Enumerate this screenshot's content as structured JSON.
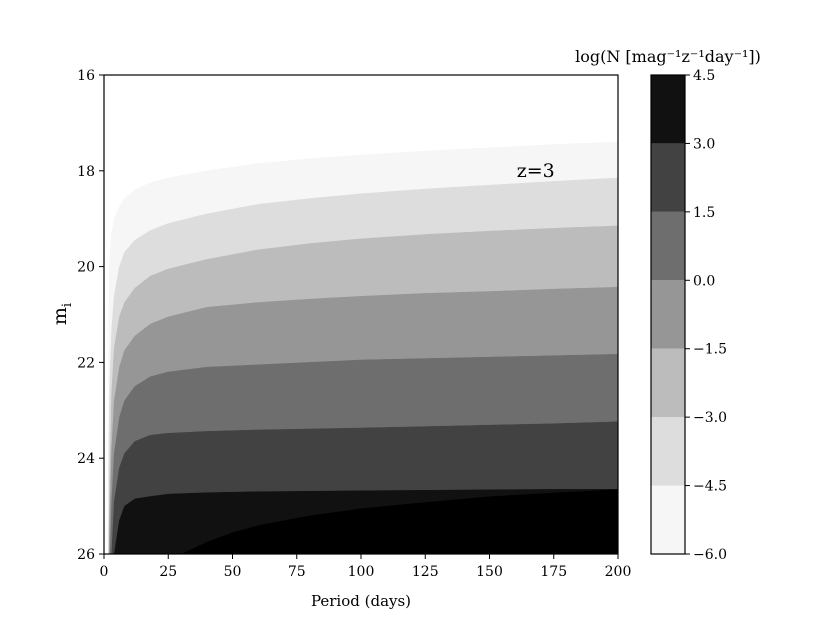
{
  "chart_data": {
    "type": "contourf",
    "xlabel": "Period (days)",
    "ylabel_base": "m",
    "ylabel_sub": "i",
    "xlim": [
      0,
      200
    ],
    "ylim": [
      26,
      16
    ],
    "y_inverted": true,
    "xticks": [
      0,
      25,
      50,
      75,
      100,
      125,
      150,
      175,
      200
    ],
    "yticks": [
      16,
      18,
      20,
      22,
      24,
      26
    ],
    "annotation": {
      "text": "z=3",
      "x": 168,
      "y": 18.0
    },
    "colorbar": {
      "title": "log(N [mag⁻¹z⁻¹day⁻¹])",
      "tick_labels": [
        "4.5",
        "3.0",
        "1.5",
        "0.0",
        "−1.5",
        "−3.0",
        "−4.5",
        "−6.0"
      ],
      "levels": [
        -6.0,
        -4.5,
        -3.0,
        -1.5,
        0.0,
        1.5,
        3.0,
        4.5
      ],
      "band_colors": [
        "#f6f6f6",
        "#dddddd",
        "#bcbcbc",
        "#969696",
        "#6e6e6e",
        "#424242",
        "#111111"
      ]
    },
    "region_colors": [
      "#ffffff",
      "#f6f6f6",
      "#dddddd",
      "#bcbcbc",
      "#969696",
      "#6e6e6e",
      "#424242",
      "#111111"
    ],
    "boundaries": [
      {
        "level": -6.0,
        "p": [
          1.8,
          2.2,
          3,
          4,
          6,
          8,
          12,
          18,
          25,
          40,
          60,
          80,
          100,
          125,
          150,
          175,
          200
        ],
        "m": [
          21.0,
          19.9,
          19.3,
          19.0,
          18.75,
          18.58,
          18.4,
          18.25,
          18.15,
          18.0,
          17.85,
          17.75,
          17.67,
          17.59,
          17.52,
          17.45,
          17.4
        ]
      },
      {
        "level": -4.5,
        "p": [
          1.8,
          2.2,
          3,
          4,
          6,
          8,
          12,
          18,
          25,
          40,
          60,
          80,
          100,
          125,
          150,
          175,
          200
        ],
        "m": [
          24.0,
          22.5,
          21.3,
          20.6,
          20.0,
          19.7,
          19.45,
          19.25,
          19.1,
          18.9,
          18.7,
          18.58,
          18.48,
          18.38,
          18.3,
          18.22,
          18.15
        ]
      },
      {
        "level": -3.0,
        "p": [
          1.8,
          2.2,
          3,
          4,
          6,
          8,
          12,
          18,
          25,
          40,
          60,
          80,
          100,
          125,
          150,
          175,
          200
        ],
        "m": [
          26.0,
          24.5,
          22.6,
          21.7,
          21.05,
          20.75,
          20.45,
          20.2,
          20.05,
          19.85,
          19.65,
          19.52,
          19.42,
          19.33,
          19.26,
          19.2,
          19.15
        ]
      },
      {
        "level": -1.5,
        "p": [
          2,
          2.4,
          3,
          4,
          6,
          8,
          12,
          18,
          25,
          40,
          60,
          80,
          100,
          125,
          150,
          175,
          200
        ],
        "m": [
          26.0,
          25.0,
          23.8,
          22.8,
          22.1,
          21.75,
          21.45,
          21.2,
          21.05,
          20.85,
          20.75,
          20.68,
          20.62,
          20.56,
          20.52,
          20.47,
          20.43
        ]
      },
      {
        "level": 0.0,
        "p": [
          2.4,
          3,
          4,
          6,
          8,
          12,
          18,
          25,
          40,
          60,
          80,
          100,
          125,
          150,
          175,
          200
        ],
        "m": [
          26.0,
          24.9,
          23.9,
          23.15,
          22.8,
          22.5,
          22.3,
          22.2,
          22.1,
          22.05,
          22.0,
          21.95,
          21.92,
          21.89,
          21.86,
          21.83
        ]
      },
      {
        "level": 1.5,
        "p": [
          3,
          4,
          6,
          8,
          12,
          18,
          25,
          40,
          60,
          80,
          100,
          125,
          150,
          175,
          200
        ],
        "m": [
          26.0,
          24.9,
          24.2,
          23.9,
          23.65,
          23.52,
          23.48,
          23.44,
          23.41,
          23.39,
          23.37,
          23.34,
          23.31,
          23.28,
          23.24
        ]
      },
      {
        "level": 3.0,
        "p": [
          4,
          6,
          8,
          12,
          18,
          25,
          40,
          60,
          80,
          100,
          125,
          150,
          175,
          200
        ],
        "m": [
          26.0,
          25.3,
          25.0,
          24.85,
          24.8,
          24.75,
          24.72,
          24.7,
          24.69,
          24.68,
          24.67,
          24.66,
          24.65,
          24.65
        ]
      },
      {
        "level": 4.5,
        "p": [
          30,
          40,
          50,
          60,
          80,
          100,
          125,
          150,
          175,
          200
        ],
        "m": [
          26.0,
          25.75,
          25.55,
          25.4,
          25.2,
          25.05,
          24.92,
          24.8,
          24.72,
          24.65
        ]
      }
    ]
  }
}
